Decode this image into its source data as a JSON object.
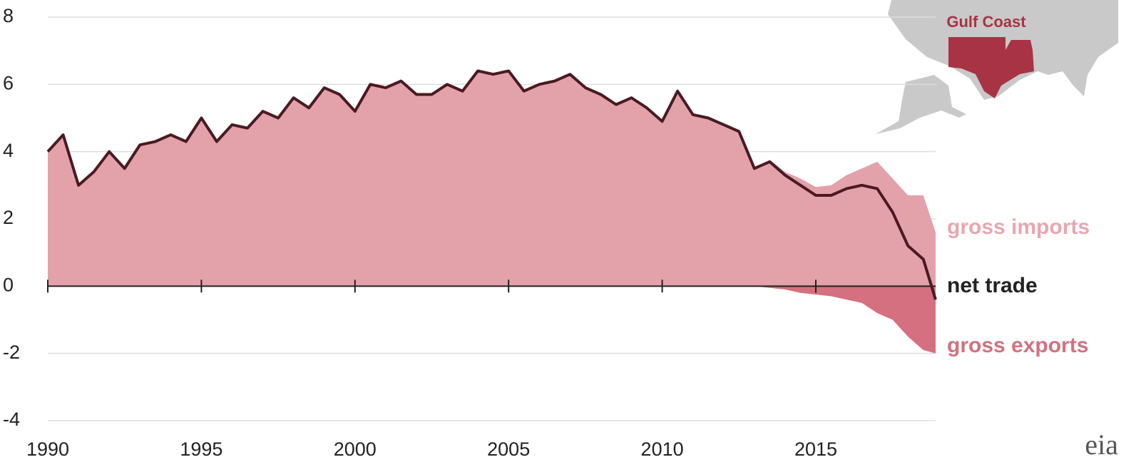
{
  "chart_data": {
    "type": "area",
    "map_label": "Gulf Coast",
    "source": "eia",
    "x": [
      1990,
      1990.5,
      1991,
      1991.5,
      1992,
      1992.5,
      1993,
      1993.5,
      1994,
      1994.5,
      1995,
      1995.5,
      1996,
      1996.5,
      1997,
      1997.5,
      1998,
      1998.5,
      1999,
      1999.5,
      2000,
      2000.5,
      2001,
      2001.5,
      2002,
      2002.5,
      2003,
      2003.5,
      2004,
      2004.5,
      2005,
      2005.5,
      2006,
      2006.5,
      2007,
      2007.5,
      2008,
      2008.5,
      2009,
      2009.5,
      2010,
      2010.5,
      2011,
      2011.5,
      2012,
      2012.5,
      2013,
      2013.5,
      2014,
      2014.5,
      2015,
      2015.5,
      2016,
      2016.5,
      2017,
      2017.5,
      2018,
      2018.5,
      2018.9
    ],
    "series": [
      {
        "name": "gross imports",
        "type": "area",
        "color": "#e3a1aa",
        "label_color": "#e8a6b0",
        "values": [
          4.0,
          4.5,
          3.0,
          3.4,
          4.0,
          3.5,
          4.2,
          4.3,
          4.5,
          4.3,
          5.0,
          4.3,
          4.8,
          4.7,
          5.2,
          5.0,
          5.6,
          5.3,
          5.9,
          5.7,
          5.2,
          6.0,
          5.9,
          6.1,
          5.7,
          5.7,
          6.0,
          5.8,
          6.4,
          6.3,
          6.4,
          5.8,
          6.0,
          6.1,
          6.3,
          5.9,
          5.7,
          5.4,
          5.6,
          5.3,
          4.9,
          5.8,
          5.1,
          5.0,
          4.8,
          4.6,
          3.5,
          3.75,
          3.4,
          3.2,
          2.95,
          3.0,
          3.3,
          3.5,
          3.7,
          3.2,
          2.7,
          2.7,
          1.6
        ]
      },
      {
        "name": "gross exports",
        "type": "area",
        "color": "#d4707f",
        "label_color": "#d4707f",
        "values": [
          0,
          0,
          0,
          0,
          0,
          0,
          0,
          0,
          0,
          0,
          0,
          0,
          0,
          0,
          0,
          0,
          0,
          0,
          0,
          0,
          0,
          0,
          0,
          0,
          0,
          0,
          0,
          0,
          0,
          0,
          0,
          0,
          0,
          0,
          0,
          0,
          0,
          0,
          0,
          0,
          0,
          0,
          0,
          0,
          0,
          0,
          0,
          -0.05,
          -0.1,
          -0.2,
          -0.25,
          -0.3,
          -0.4,
          -0.5,
          -0.8,
          -1.0,
          -1.5,
          -1.9,
          -2.0
        ]
      },
      {
        "name": "net trade",
        "type": "line",
        "color": "#4a1a22",
        "label_color": "#222222",
        "values": [
          4.0,
          4.5,
          3.0,
          3.4,
          4.0,
          3.5,
          4.2,
          4.3,
          4.5,
          4.3,
          5.0,
          4.3,
          4.8,
          4.7,
          5.2,
          5.0,
          5.6,
          5.3,
          5.9,
          5.7,
          5.2,
          6.0,
          5.9,
          6.1,
          5.7,
          5.7,
          6.0,
          5.8,
          6.4,
          6.3,
          6.4,
          5.8,
          6.0,
          6.1,
          6.3,
          5.9,
          5.7,
          5.4,
          5.6,
          5.3,
          4.9,
          5.8,
          5.1,
          5.0,
          4.8,
          4.6,
          3.5,
          3.7,
          3.3,
          3.0,
          2.7,
          2.7,
          2.9,
          3.0,
          2.9,
          2.2,
          1.2,
          0.8,
          -0.4
        ]
      }
    ],
    "xlim": [
      1990,
      2018.9
    ],
    "xticks": [
      1990,
      1995,
      2000,
      2005,
      2010,
      2015
    ],
    "ylim": [
      -4,
      8
    ],
    "yticks": [
      -4,
      -2,
      0,
      2,
      4,
      6,
      8
    ],
    "grid": true
  }
}
